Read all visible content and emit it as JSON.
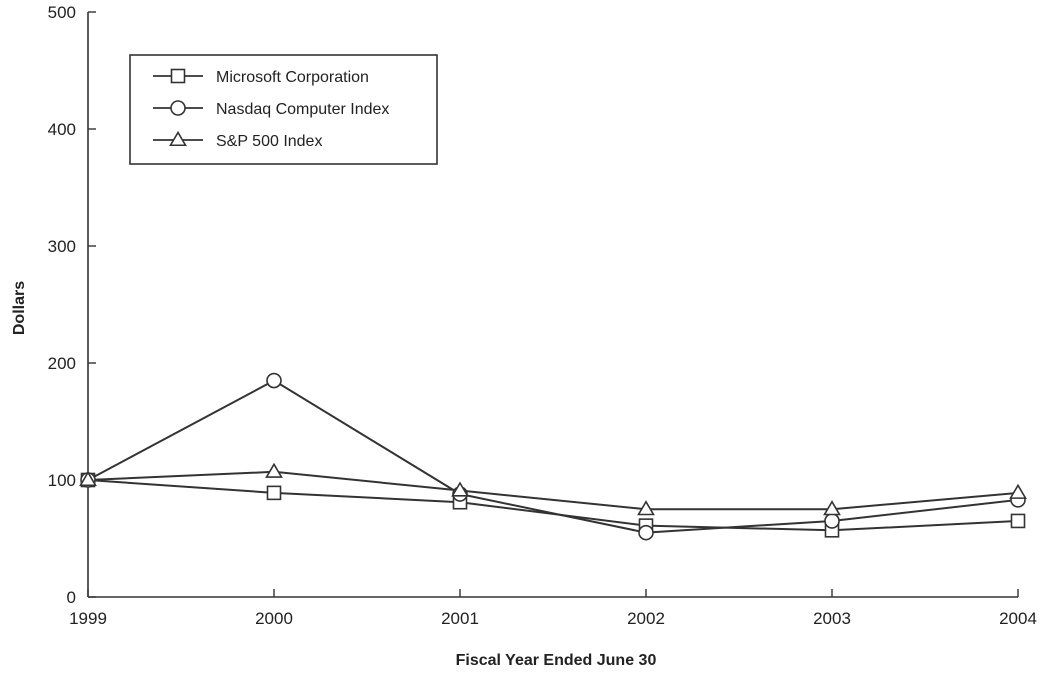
{
  "chart_data": {
    "type": "line",
    "title": "",
    "xlabel": "Fiscal Year Ended June 30",
    "ylabel": "Dollars",
    "categories": [
      "1999",
      "2000",
      "2001",
      "2002",
      "2003",
      "2004"
    ],
    "ylim": [
      0,
      500
    ],
    "yticks": [
      "0",
      "100",
      "200",
      "300",
      "400",
      "500"
    ],
    "grid": false,
    "legend_position": "top-left",
    "series": [
      {
        "name": "Microsoft Corporation",
        "marker": "square",
        "values": [
          100,
          89,
          81,
          61,
          57,
          65
        ]
      },
      {
        "name": "Nasdaq Computer Index",
        "marker": "circle",
        "values": [
          100,
          185,
          88,
          55,
          65,
          83
        ]
      },
      {
        "name": "S&P 500 Index",
        "marker": "triangle",
        "values": [
          100,
          107,
          91,
          75,
          75,
          89
        ]
      }
    ]
  }
}
